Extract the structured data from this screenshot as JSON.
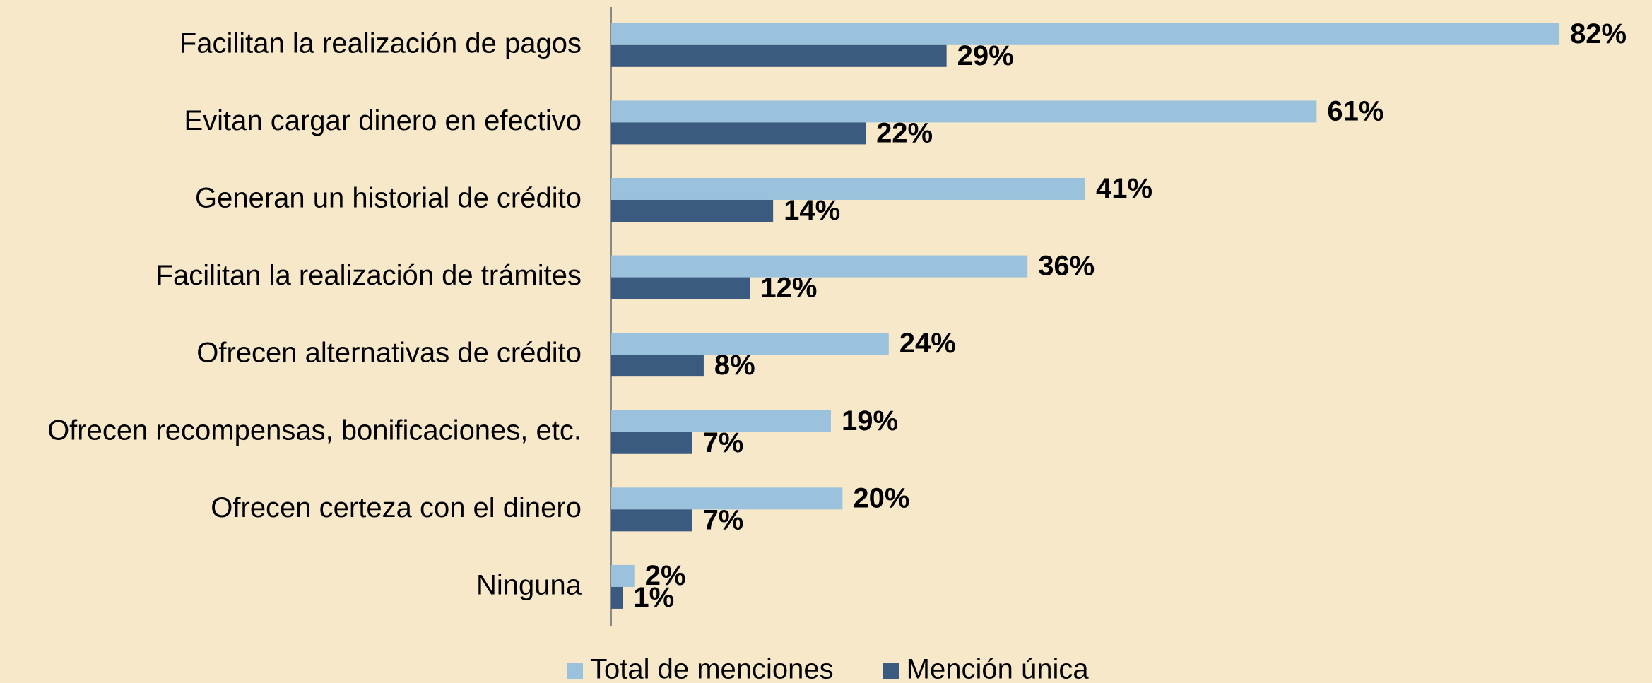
{
  "chart_data": {
    "type": "bar",
    "orientation": "horizontal",
    "categories": [
      "Facilitan la realización de pagos",
      "Evitan cargar dinero en efectivo",
      "Generan un historial de crédito",
      "Facilitan la realización de trámites",
      "Ofrecen alternativas de crédito",
      "Ofrecen recompensas, bonificaciones, etc.",
      "Ofrecen certeza con el dinero",
      "Ninguna"
    ],
    "series": [
      {
        "name": "Total de menciones",
        "color": "#9ac2dd",
        "values": [
          82,
          61,
          41,
          36,
          24,
          19,
          20,
          2
        ],
        "value_labels": [
          "82%",
          "61%",
          "41%",
          "36%",
          "24%",
          "19%",
          "20%",
          "2%"
        ]
      },
      {
        "name": "Mención única",
        "color": "#3b5a80",
        "values": [
          29,
          22,
          14,
          12,
          8,
          7,
          7,
          1
        ],
        "value_labels": [
          "29%",
          "22%",
          "14%",
          "12%",
          "8%",
          "7%",
          "7%",
          "1%"
        ]
      }
    ],
    "xlim": [
      0,
      90
    ],
    "legend": "bottom"
  }
}
